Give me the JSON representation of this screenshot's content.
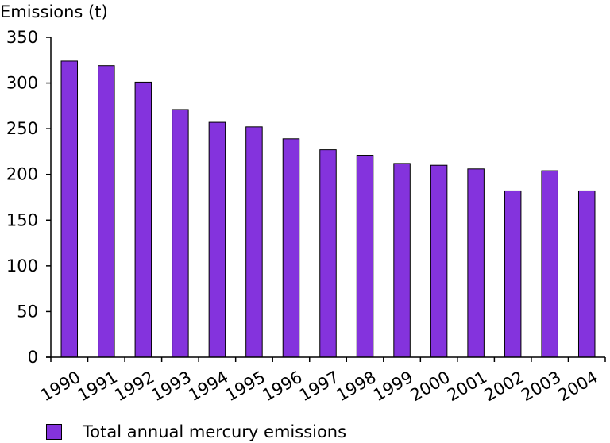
{
  "chart_data": {
    "type": "bar",
    "ylabel": "Emissions (t)",
    "xlabel": "",
    "categories": [
      "1990",
      "1991",
      "1992",
      "1993",
      "1994",
      "1995",
      "1996",
      "1997",
      "1998",
      "1999",
      "2000",
      "2001",
      "2002",
      "2003",
      "2004"
    ],
    "series": [
      {
        "name": "Total annual mercury emissions",
        "values": [
          324,
          319,
          301,
          271,
          257,
          252,
          239,
          227,
          221,
          212,
          210,
          206,
          182,
          204,
          182
        ],
        "color": "#8433DD"
      }
    ],
    "ylim": [
      0,
      350
    ],
    "yticks": [
      0,
      50,
      100,
      150,
      200,
      250,
      300,
      350
    ],
    "grid": false,
    "legend_position": "bottom-left"
  }
}
